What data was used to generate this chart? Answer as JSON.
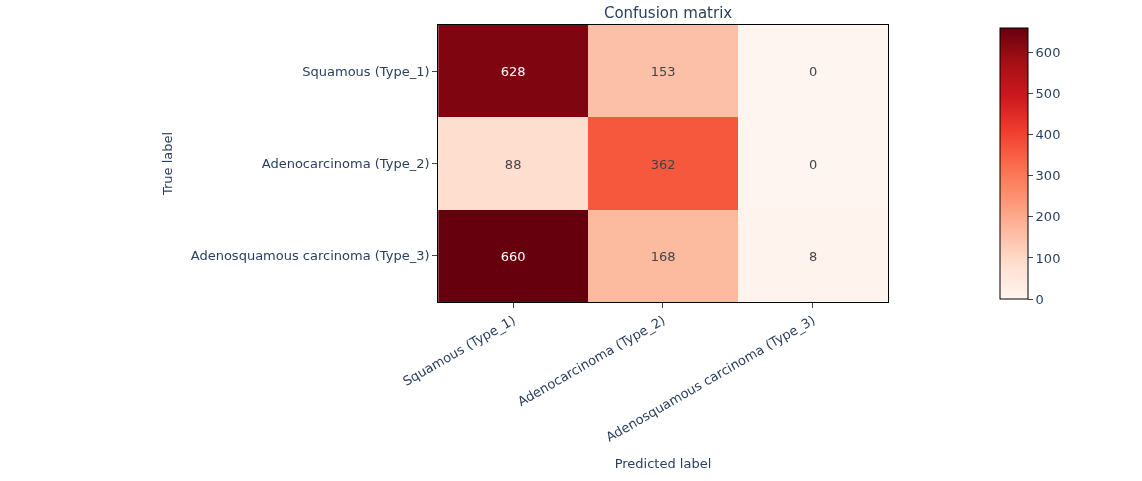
{
  "chart_data": {
    "type": "heatmap",
    "title": "Confusion matrix",
    "xlabel": "Predicted label",
    "ylabel": "True label",
    "categories": [
      "Squamous (Type_1)",
      "Adenocarcinoma (Type_2)",
      "Adenosquamous carcinoma (Type_3)"
    ],
    "y_categories": [
      "Squamous (Type_1)",
      "Adenocarcinoma (Type_2)",
      "Adenosquamous carcinoma (Type_3)"
    ],
    "cells": [
      [
        628,
        153,
        0
      ],
      [
        88,
        362,
        0
      ],
      [
        660,
        168,
        8
      ]
    ],
    "data_labels": true,
    "clim": [
      0,
      660
    ],
    "cticks": [
      0,
      100,
      200,
      300,
      400,
      500,
      600
    ]
  }
}
